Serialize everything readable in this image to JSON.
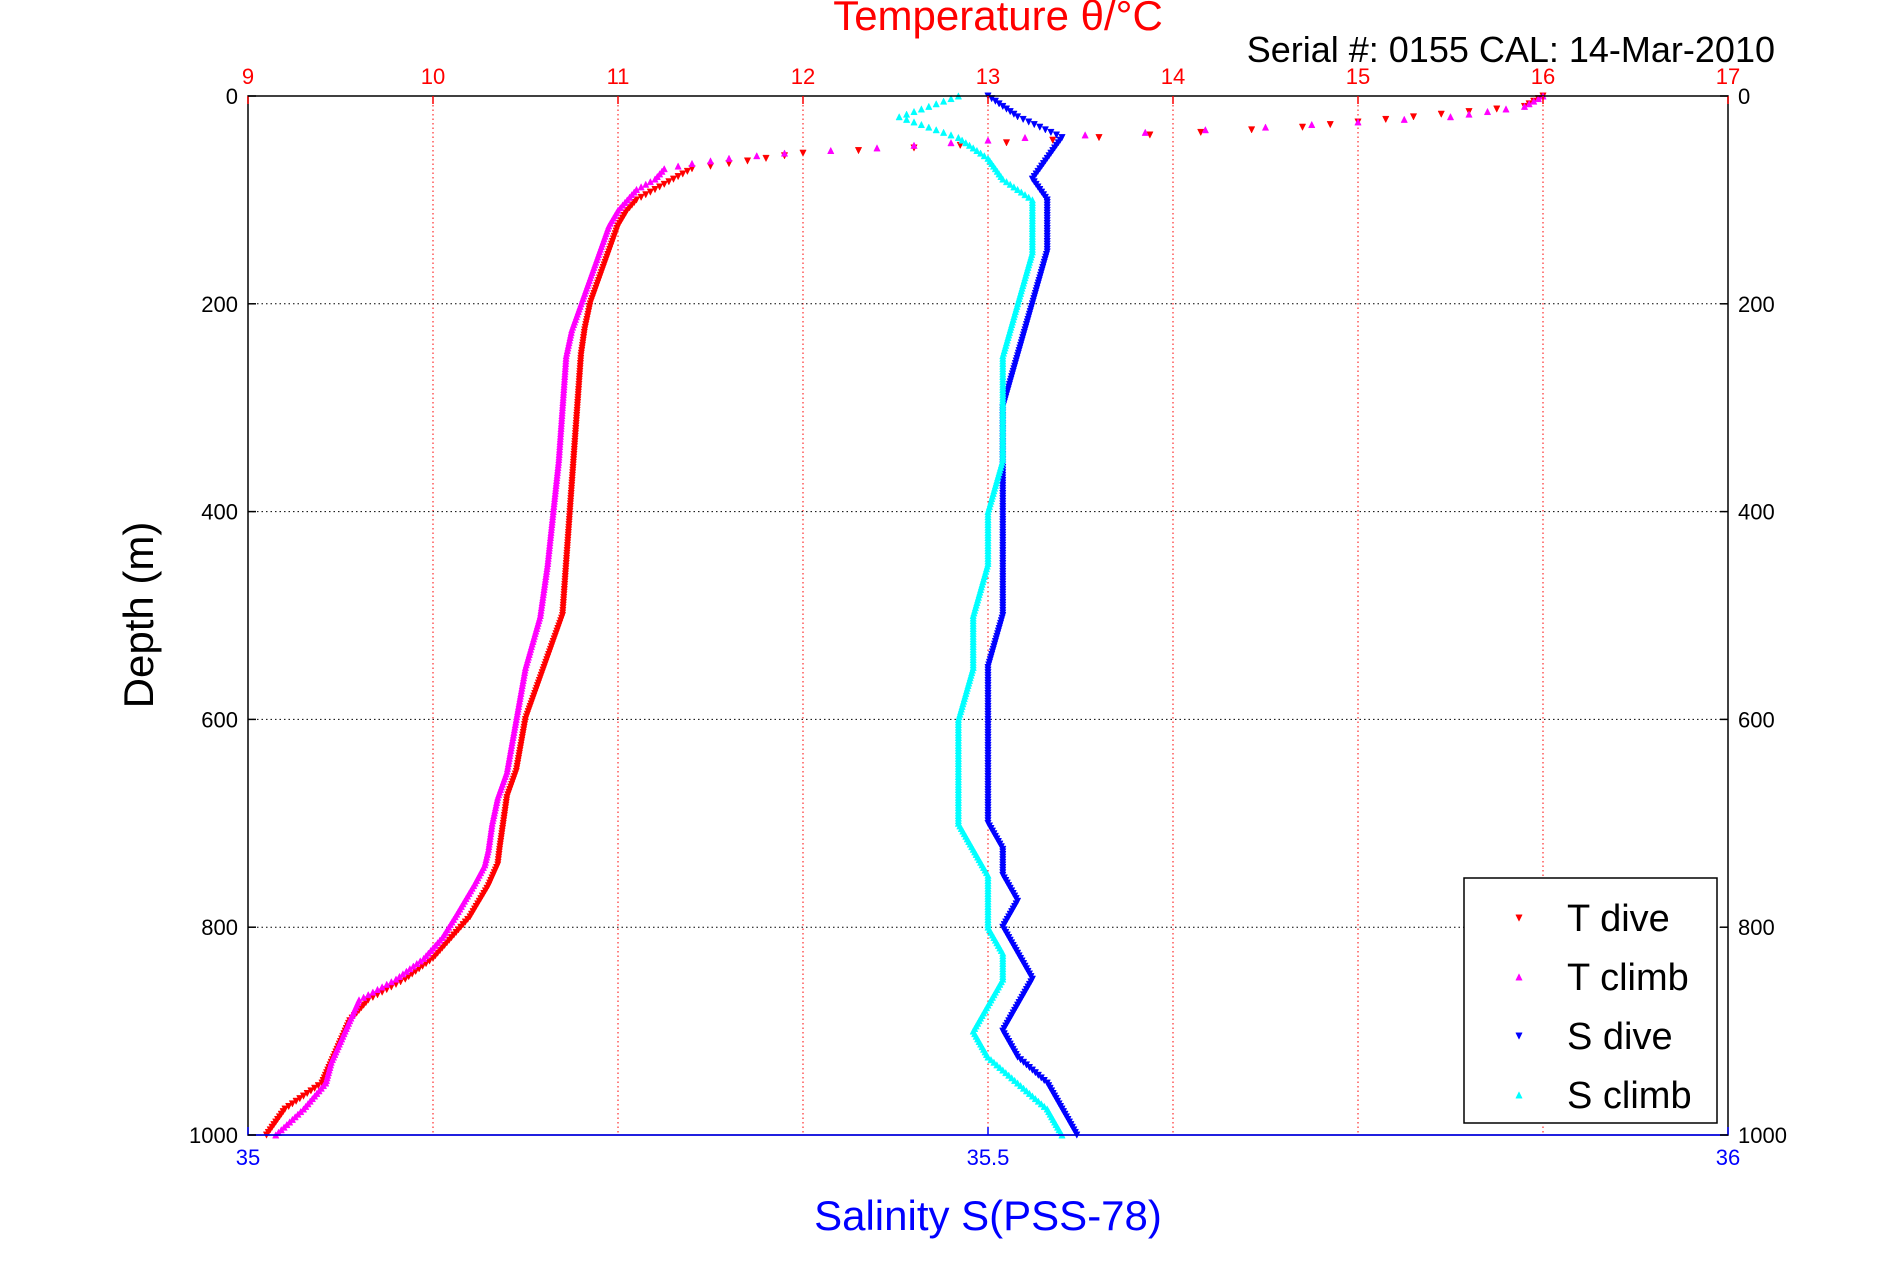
{
  "figure": {
    "title": "Temperature θ/°C",
    "subtitle": "Serial #: 0155  CAL: 14-Mar-2010"
  },
  "chart_data": {
    "type": "scatter",
    "axes": {
      "top_x": {
        "label": "Temperature θ/°C",
        "range": [
          9,
          17
        ],
        "ticks": [
          9,
          10,
          11,
          12,
          13,
          14,
          15,
          16,
          17
        ],
        "color": "#ff0000"
      },
      "bottom_x": {
        "label": "Salinity S(PSS-78)",
        "range": [
          35,
          36
        ],
        "ticks": [
          35,
          35.5,
          36
        ],
        "tick_labels": [
          "35",
          "35.5",
          "36"
        ],
        "color": "#0000ff"
      },
      "y": {
        "label": "Depth (m)",
        "range": [
          0,
          1000
        ],
        "reversed": true,
        "ticks": [
          0,
          200,
          400,
          600,
          800,
          1000
        ]
      }
    },
    "grid": true,
    "legend_position": "bottom-right",
    "series": [
      {
        "name": "T dive",
        "axis": "temperature",
        "color": "#ff0000",
        "marker": "triangle-down",
        "depth": [
          0,
          10,
          20,
          30,
          40,
          50,
          55,
          60,
          65,
          70,
          80,
          90,
          100,
          110,
          125,
          150,
          175,
          200,
          225,
          250,
          300,
          350,
          400,
          450,
          500,
          550,
          600,
          650,
          675,
          700,
          725,
          740,
          760,
          790,
          810,
          830,
          850,
          870,
          890,
          910,
          930,
          950,
          975,
          1000
        ],
        "values": [
          16.0,
          15.9,
          15.3,
          14.7,
          13.6,
          12.6,
          12.0,
          11.8,
          11.6,
          11.4,
          11.3,
          11.2,
          11.1,
          11.05,
          11.0,
          10.95,
          10.9,
          10.85,
          10.82,
          10.8,
          10.78,
          10.76,
          10.74,
          10.72,
          10.7,
          10.6,
          10.5,
          10.45,
          10.4,
          10.38,
          10.36,
          10.35,
          10.3,
          10.2,
          10.1,
          10.0,
          9.85,
          9.65,
          9.55,
          9.5,
          9.45,
          9.4,
          9.2,
          9.1
        ]
      },
      {
        "name": "T climb",
        "axis": "temperature",
        "color": "#ff00ff",
        "marker": "triangle-up",
        "depth": [
          0,
          10,
          20,
          30,
          40,
          50,
          55,
          60,
          65,
          70,
          80,
          90,
          100,
          110,
          125,
          150,
          175,
          200,
          225,
          250,
          300,
          350,
          400,
          450,
          500,
          550,
          600,
          650,
          675,
          700,
          725,
          740,
          760,
          790,
          810,
          830,
          850,
          870,
          890,
          910,
          930,
          950,
          975,
          1000
        ],
        "values": [
          16.0,
          15.9,
          15.5,
          14.5,
          13.2,
          12.4,
          11.9,
          11.6,
          11.4,
          11.25,
          11.2,
          11.1,
          11.05,
          11.0,
          10.95,
          10.9,
          10.85,
          10.8,
          10.75,
          10.72,
          10.7,
          10.68,
          10.65,
          10.62,
          10.58,
          10.5,
          10.45,
          10.4,
          10.35,
          10.32,
          10.3,
          10.28,
          10.22,
          10.12,
          10.05,
          9.95,
          9.8,
          9.6,
          9.55,
          9.5,
          9.45,
          9.42,
          9.3,
          9.15
        ]
      },
      {
        "name": "S dive",
        "axis": "salinity",
        "color": "#0000ff",
        "marker": "triangle-down",
        "depth": [
          0,
          20,
          40,
          60,
          80,
          100,
          150,
          200,
          250,
          300,
          350,
          400,
          450,
          500,
          550,
          600,
          650,
          700,
          725,
          750,
          775,
          800,
          825,
          850,
          875,
          900,
          925,
          950,
          975,
          1000
        ],
        "values": [
          35.5,
          35.52,
          35.55,
          35.54,
          35.53,
          35.54,
          35.54,
          35.53,
          35.52,
          35.51,
          35.51,
          35.51,
          35.51,
          35.51,
          35.5,
          35.5,
          35.5,
          35.5,
          35.51,
          35.51,
          35.52,
          35.51,
          35.52,
          35.53,
          35.52,
          35.51,
          35.52,
          35.54,
          35.55,
          35.56
        ]
      },
      {
        "name": "S climb",
        "axis": "salinity",
        "color": "#00ffff",
        "marker": "triangle-up",
        "depth": [
          0,
          20,
          40,
          60,
          80,
          100,
          150,
          200,
          250,
          300,
          350,
          400,
          450,
          500,
          550,
          600,
          650,
          700,
          725,
          750,
          775,
          800,
          825,
          850,
          875,
          900,
          925,
          950,
          975,
          1000
        ],
        "values": [
          35.48,
          35.44,
          35.48,
          35.5,
          35.51,
          35.53,
          35.53,
          35.52,
          35.51,
          35.51,
          35.51,
          35.5,
          35.5,
          35.49,
          35.49,
          35.48,
          35.48,
          35.48,
          35.49,
          35.5,
          35.5,
          35.5,
          35.51,
          35.51,
          35.5,
          35.49,
          35.5,
          35.52,
          35.54,
          35.55
        ]
      }
    ]
  }
}
